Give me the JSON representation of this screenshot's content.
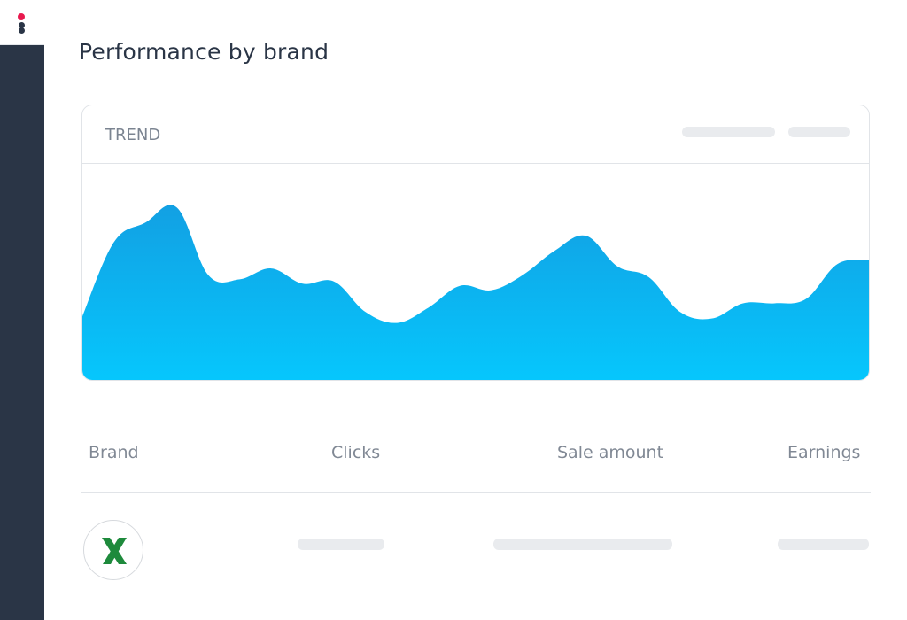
{
  "page": {
    "title": "Performance by brand"
  },
  "colors": {
    "sidebar": "#2a3546",
    "accent_red": "#e8194e",
    "chart_top": "#12a0e3",
    "chart_bottom": "#06c7fd",
    "brand_green": "#1e8a3c"
  },
  "trend_card": {
    "title": "TREND"
  },
  "table": {
    "columns": [
      "Brand",
      "Clicks",
      "Sale amount",
      "Earnings"
    ],
    "rows": [
      {
        "brand_icon": "brand-x-logo-icon"
      }
    ]
  },
  "chart_data": {
    "type": "area",
    "title": "",
    "xlabel": "",
    "ylabel": "",
    "grid": false,
    "series": [
      {
        "values": [
          30,
          64,
          73,
          80,
          49,
          47,
          52,
          45,
          46,
          32,
          27,
          34,
          44,
          42,
          49,
          60,
          67,
          53,
          48,
          32,
          29,
          36,
          36,
          38,
          54,
          56
        ]
      }
    ],
    "ylim": [
      0,
      100
    ]
  }
}
